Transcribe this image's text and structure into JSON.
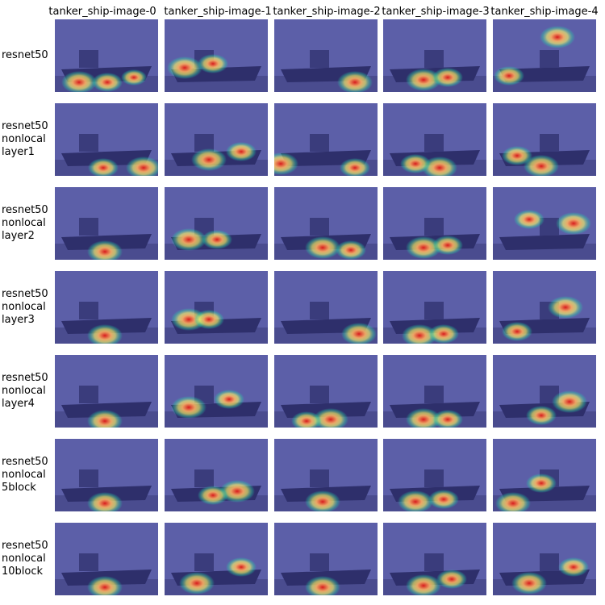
{
  "columns": [
    "tanker_ship-image-0",
    "tanker_ship-image-1",
    "tanker_ship-image-2",
    "tanker_ship-image-3",
    "tanker_ship-image-4"
  ],
  "rows": [
    {
      "label": "resnet50"
    },
    {
      "label": "resnet50\nnonlocal\nlayer1"
    },
    {
      "label": "resnet50\nnonlocal\nlayer2"
    },
    {
      "label": "resnet50\nnonlocal\nlayer3"
    },
    {
      "label": "resnet50\nnonlocal\nlayer4"
    },
    {
      "label": "resnet50\nnonlocal\n5block"
    },
    {
      "label": "resnet50\nnonlocal\n10block"
    }
  ],
  "colors": {
    "overlay_base": "#5c5fa8",
    "hot": "#d7191c",
    "warm": "#fdae61",
    "mid": "#ffff66",
    "cool": "#2bd9a6"
  }
}
